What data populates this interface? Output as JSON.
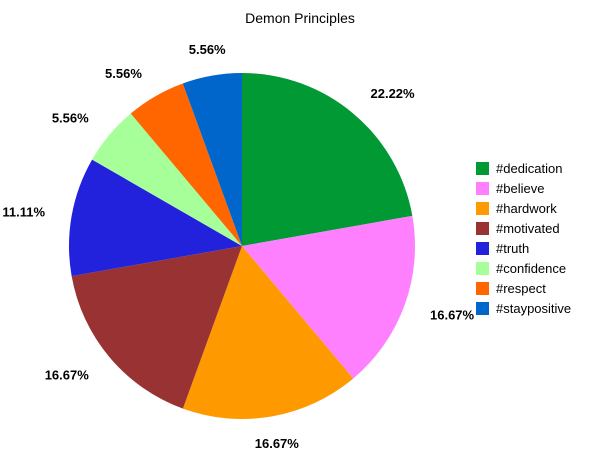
{
  "chart_data": {
    "type": "pie",
    "title": "Demon Principles",
    "slices": [
      {
        "label": "#dedication",
        "value": 22.22,
        "display": "22.22%",
        "color": "#009933"
      },
      {
        "label": "#believe",
        "value": 16.67,
        "display": "16.67%",
        "color": "#ff80ff"
      },
      {
        "label": "#hardwork",
        "value": 16.67,
        "display": "16.67%",
        "color": "#ff9900"
      },
      {
        "label": "#motivated",
        "value": 16.67,
        "display": "16.67%",
        "color": "#993333"
      },
      {
        "label": "#truth",
        "value": 11.11,
        "display": "11.11%",
        "color": "#2222dd"
      },
      {
        "label": "#confidence",
        "value": 5.56,
        "display": "5.56%",
        "color": "#a6ff99"
      },
      {
        "label": "#respect",
        "value": 5.56,
        "display": "5.56%",
        "color": "#ff6600"
      },
      {
        "label": "#staypositive",
        "value": 5.56,
        "display": "5.56%",
        "color": "#0066cc"
      }
    ],
    "start": "12 o'clock",
    "direction": "clockwise",
    "legend_position": "right"
  }
}
